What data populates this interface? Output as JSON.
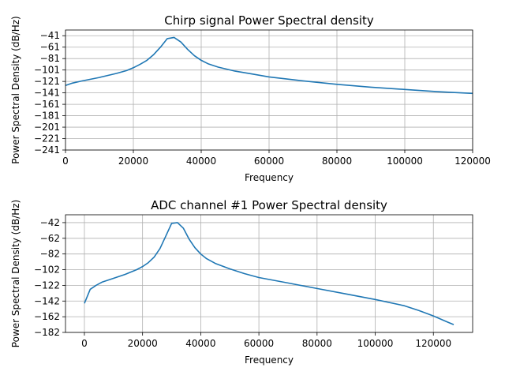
{
  "chart_data": [
    {
      "type": "line",
      "title": "Chirp signal Power Spectral density",
      "xlabel": "Frequency",
      "ylabel": "Power Spectral Density (dB/Hz)",
      "xlim": [
        0,
        120000
      ],
      "ylim": [
        -241,
        -31
      ],
      "xticks": [
        0,
        20000,
        40000,
        60000,
        80000,
        100000,
        120000
      ],
      "yticks": [
        -41,
        -61,
        -81,
        -101,
        -121,
        -141,
        -161,
        -181,
        -201,
        -221,
        -241
      ],
      "grid": true,
      "color": "#1f77b4",
      "series": [
        {
          "x": [
            0,
            2000,
            5000,
            10000,
            15000,
            18000,
            20000,
            22000,
            24000,
            26000,
            28000,
            30000,
            32000,
            34000,
            36000,
            38000,
            40000,
            42000,
            45000,
            50000,
            55000,
            60000,
            70000,
            80000,
            90000,
            100000,
            110000,
            120000
          ],
          "y": [
            -128,
            -124,
            -120,
            -114,
            -107,
            -102,
            -97,
            -91,
            -84,
            -74,
            -61,
            -46,
            -44,
            -52,
            -65,
            -76,
            -84,
            -90,
            -96,
            -103,
            -108,
            -113,
            -120,
            -126,
            -131,
            -135,
            -139,
            -142
          ]
        }
      ]
    },
    {
      "type": "line",
      "title": "ADC channel #1 Power Spectral density",
      "xlabel": "Frequency",
      "ylabel": "Power Spectral Density (dB/Hz)",
      "xlim": [
        -6500,
        133500
      ],
      "ylim": [
        -182,
        -32
      ],
      "xticks": [
        0,
        20000,
        40000,
        60000,
        80000,
        100000,
        120000
      ],
      "yticks": [
        -42,
        -62,
        -82,
        -102,
        -122,
        -142,
        -162,
        -182
      ],
      "grid": true,
      "color": "#1f77b4",
      "series": [
        {
          "x": [
            0,
            2000,
            4000,
            6000,
            10000,
            14000,
            18000,
            20000,
            22000,
            24000,
            26000,
            28000,
            30000,
            32000,
            34000,
            36000,
            38000,
            40000,
            42000,
            45000,
            50000,
            55000,
            60000,
            70000,
            80000,
            90000,
            100000,
            110000,
            115000,
            120000,
            125000,
            127000
          ],
          "y": [
            -145,
            -127,
            -122,
            -118,
            -113,
            -108,
            -102,
            -98,
            -93,
            -86,
            -75,
            -59,
            -43,
            -42,
            -49,
            -63,
            -74,
            -82,
            -88,
            -94,
            -101,
            -107,
            -112,
            -119,
            -126,
            -133,
            -140,
            -148,
            -154,
            -161,
            -169,
            -172
          ]
        }
      ]
    }
  ]
}
